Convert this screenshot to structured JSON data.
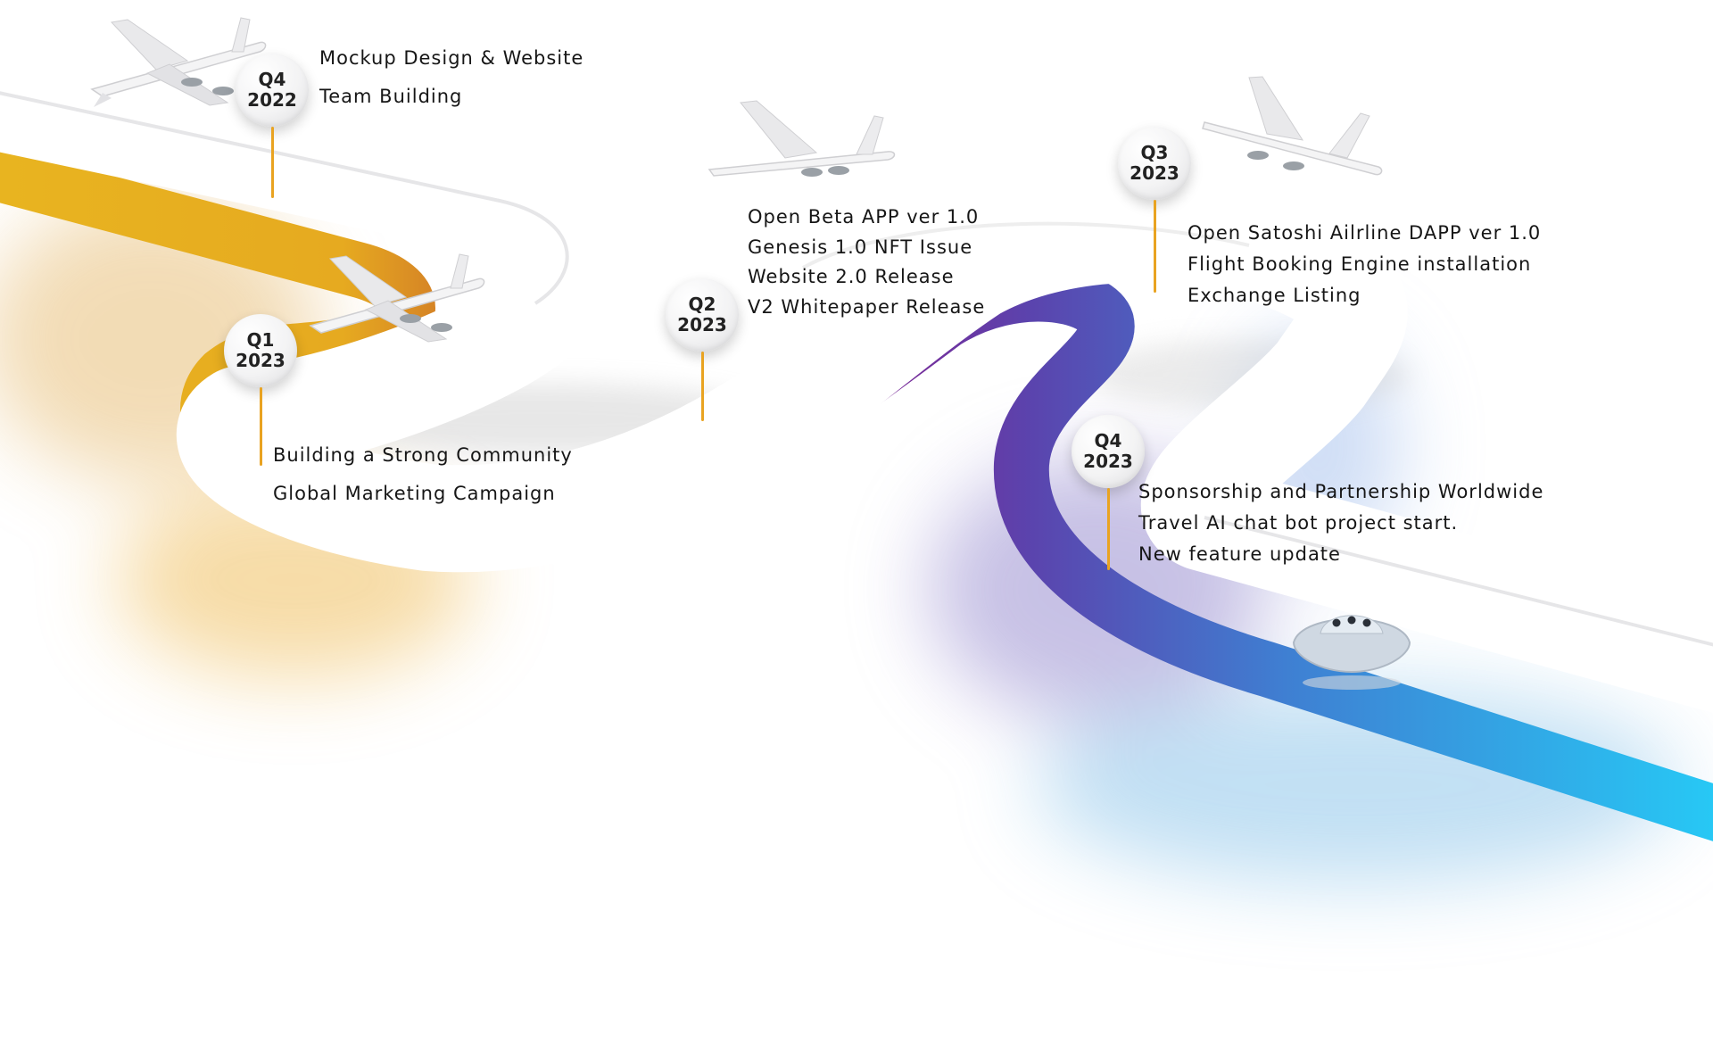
{
  "milestones": [
    {
      "quarter": "Q4",
      "year": "2022",
      "items": [
        "Mockup Design & Website",
        "Team Building"
      ]
    },
    {
      "quarter": "Q1",
      "year": "2023",
      "items": [
        "Building a Strong Community",
        "Global Marketing Campaign"
      ]
    },
    {
      "quarter": "Q2",
      "year": "2023",
      "items": [
        "Open Beta APP ver 1.0",
        "Genesis 1.0 NFT Issue",
        "Website 2.0 Release",
        "V2 Whitepaper Release"
      ]
    },
    {
      "quarter": "Q3",
      "year": "2023",
      "items": [
        "Open Satoshi Ailrline DAPP ver 1.0",
        "Flight Booking Engine installation",
        "Exchange Listing"
      ]
    },
    {
      "quarter": "Q4",
      "year": "2023",
      "items": [
        "Sponsorship and Partnership Worldwide",
        "Travel AI chat bot project start.",
        "New feature update"
      ]
    }
  ],
  "decorations": [
    "airplane-icon",
    "airplane-icon",
    "airplane-icon",
    "airplane-icon",
    "ufo-icon"
  ],
  "colors": {
    "road_start": "#e8b420",
    "road_orange": "#c8642a",
    "road_purple": "#8b1e8f",
    "road_violet": "#6a3ca4",
    "road_blue": "#3a7fd0",
    "road_end": "#27c8f5",
    "stem": "#e9a321"
  }
}
